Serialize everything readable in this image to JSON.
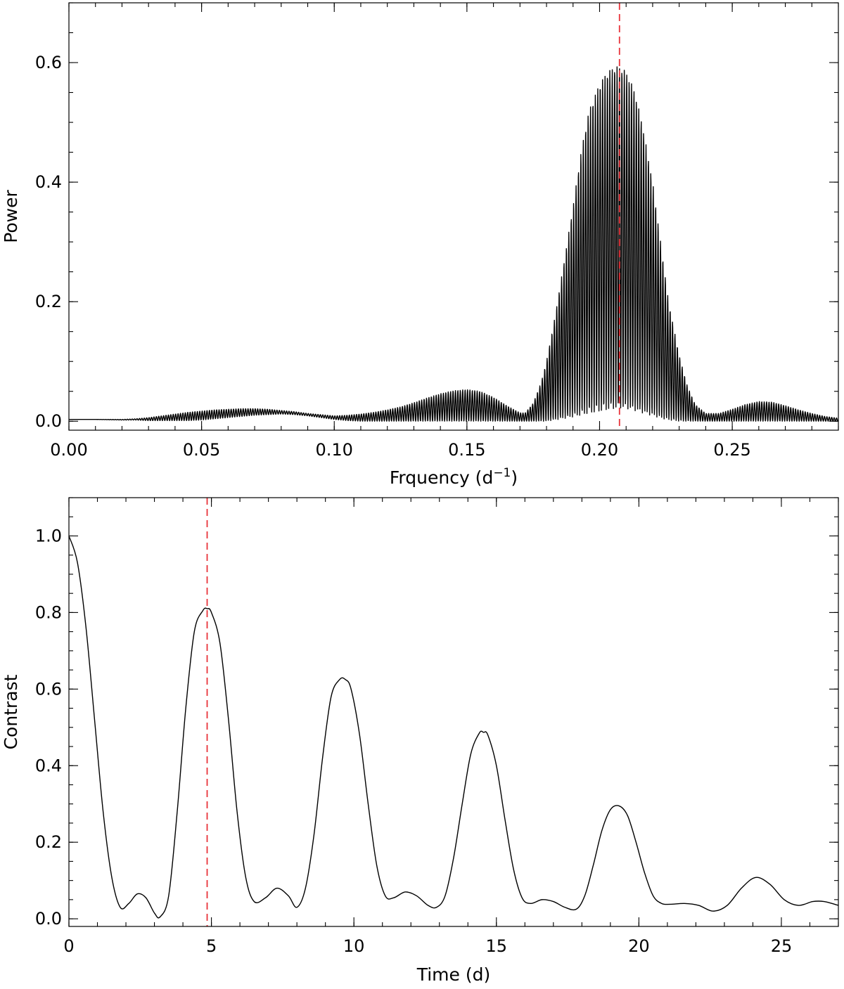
{
  "chart_data": [
    {
      "type": "line",
      "title": "",
      "xlabel": "Frquency (d",
      "xlabel_sup": "−1",
      "xlabel_suffix": ")",
      "ylabel": "Power",
      "xlim": [
        0.0,
        0.29
      ],
      "ylim": [
        -0.015,
        0.7
      ],
      "xticks": [
        0.0,
        0.05,
        0.1,
        0.15,
        0.2,
        0.25
      ],
      "xtick_labels": [
        "0.00",
        "0.05",
        "0.10",
        "0.15",
        "0.20",
        "0.25"
      ],
      "xminor_step": 0.01,
      "yticks": [
        0.0,
        0.2,
        0.4,
        0.6
      ],
      "ytick_labels": [
        "0.0",
        "0.2",
        "0.4",
        "0.6"
      ],
      "yminor_step": 0.05,
      "grid": false,
      "marker_x": 0.2075,
      "marker_color": "#e8333a",
      "series": [
        {
          "style": "fine-oscillation",
          "fringe_frequency": 1100,
          "x": [
            0.0,
            0.01,
            0.02,
            0.025,
            0.03,
            0.035,
            0.04,
            0.045,
            0.05,
            0.055,
            0.06,
            0.065,
            0.07,
            0.075,
            0.08,
            0.085,
            0.09,
            0.095,
            0.1,
            0.105,
            0.11,
            0.115,
            0.12,
            0.125,
            0.13,
            0.135,
            0.14,
            0.145,
            0.15,
            0.155,
            0.16,
            0.165,
            0.17,
            0.172,
            0.175,
            0.178,
            0.18,
            0.183,
            0.186,
            0.19,
            0.193,
            0.196,
            0.2,
            0.203,
            0.206,
            0.208,
            0.21,
            0.213,
            0.216,
            0.22,
            0.223,
            0.226,
            0.23,
            0.233,
            0.236,
            0.24,
            0.245,
            0.25,
            0.255,
            0.26,
            0.265,
            0.27,
            0.275,
            0.28,
            0.285,
            0.29
          ],
          "upper": [
            0.003,
            0.003,
            0.003,
            0.004,
            0.006,
            0.009,
            0.012,
            0.015,
            0.017,
            0.019,
            0.02,
            0.021,
            0.021,
            0.02,
            0.018,
            0.016,
            0.013,
            0.011,
            0.009,
            0.01,
            0.012,
            0.015,
            0.019,
            0.024,
            0.031,
            0.039,
            0.046,
            0.051,
            0.053,
            0.05,
            0.04,
            0.026,
            0.014,
            0.014,
            0.03,
            0.065,
            0.1,
            0.17,
            0.25,
            0.36,
            0.45,
            0.52,
            0.565,
            0.585,
            0.594,
            0.592,
            0.585,
            0.555,
            0.5,
            0.4,
            0.3,
            0.2,
            0.11,
            0.06,
            0.028,
            0.013,
            0.013,
            0.02,
            0.028,
            0.033,
            0.032,
            0.026,
            0.019,
            0.013,
            0.008,
            0.005
          ],
          "lower": [
            0.003,
            0.003,
            0.002,
            0.002,
            0.001,
            0.001,
            0.001,
            0.001,
            0.002,
            0.004,
            0.006,
            0.008,
            0.01,
            0.011,
            0.012,
            0.011,
            0.009,
            0.006,
            0.003,
            0.001,
            0.0,
            0.0,
            0.0,
            0.0,
            0.0,
            0.0,
            0.0,
            0.0,
            0.0,
            0.0,
            0.0,
            0.0,
            0.0,
            0.0,
            0.0,
            0.0,
            0.0,
            0.002,
            0.004,
            0.007,
            0.01,
            0.013,
            0.016,
            0.019,
            0.021,
            0.022,
            0.021,
            0.018,
            0.014,
            0.009,
            0.005,
            0.002,
            0.0,
            0.0,
            0.0,
            0.0,
            0.0,
            0.0,
            0.0,
            0.0,
            0.0,
            0.0,
            0.0,
            0.0,
            0.0,
            0.0
          ]
        }
      ]
    },
    {
      "type": "line",
      "title": "",
      "xlabel": "Time (d)",
      "ylabel": "Contrast",
      "xlim": [
        0,
        27
      ],
      "ylim": [
        -0.02,
        1.1
      ],
      "xticks": [
        0,
        5,
        10,
        15,
        20,
        25
      ],
      "xtick_labels": [
        "0",
        "5",
        "10",
        "15",
        "20",
        "25"
      ],
      "xminor_step": 1,
      "yticks": [
        0.0,
        0.2,
        0.4,
        0.6,
        0.8,
        1.0
      ],
      "ytick_labels": [
        "0.0",
        "0.2",
        "0.4",
        "0.6",
        "0.8",
        "1.0"
      ],
      "yminor_step": 0.05,
      "grid": false,
      "marker_x": 4.85,
      "marker_color": "#e8333a",
      "series": [
        {
          "style": "smooth",
          "x": [
            0.0,
            0.3,
            0.6,
            0.9,
            1.2,
            1.5,
            1.8,
            2.1,
            2.4,
            2.7,
            3.0,
            3.2,
            3.5,
            3.8,
            4.1,
            4.4,
            4.7,
            4.85,
            5.0,
            5.3,
            5.6,
            5.9,
            6.2,
            6.5,
            6.9,
            7.3,
            7.7,
            8.0,
            8.3,
            8.6,
            8.9,
            9.2,
            9.5,
            9.7,
            9.9,
            10.2,
            10.5,
            10.8,
            11.1,
            11.4,
            11.8,
            12.2,
            12.6,
            12.9,
            13.2,
            13.5,
            13.8,
            14.1,
            14.4,
            14.55,
            14.7,
            15.0,
            15.3,
            15.6,
            15.9,
            16.2,
            16.6,
            17.0,
            17.4,
            17.8,
            18.1,
            18.4,
            18.7,
            19.0,
            19.3,
            19.6,
            19.9,
            20.2,
            20.5,
            20.8,
            21.1,
            21.6,
            22.1,
            22.6,
            23.1,
            23.6,
            24.1,
            24.6,
            25.1,
            25.6,
            26.1,
            26.5,
            27.0
          ],
          "y": [
            1.0,
            0.93,
            0.76,
            0.52,
            0.28,
            0.11,
            0.03,
            0.04,
            0.065,
            0.055,
            0.015,
            0.005,
            0.06,
            0.28,
            0.55,
            0.75,
            0.805,
            0.81,
            0.8,
            0.72,
            0.52,
            0.28,
            0.11,
            0.045,
            0.055,
            0.08,
            0.06,
            0.03,
            0.08,
            0.22,
            0.42,
            0.58,
            0.625,
            0.625,
            0.6,
            0.48,
            0.3,
            0.14,
            0.06,
            0.055,
            0.07,
            0.06,
            0.035,
            0.03,
            0.06,
            0.16,
            0.3,
            0.43,
            0.485,
            0.487,
            0.48,
            0.4,
            0.26,
            0.13,
            0.055,
            0.04,
            0.05,
            0.045,
            0.03,
            0.025,
            0.06,
            0.14,
            0.23,
            0.285,
            0.295,
            0.27,
            0.2,
            0.12,
            0.06,
            0.04,
            0.038,
            0.04,
            0.035,
            0.02,
            0.035,
            0.08,
            0.108,
            0.09,
            0.05,
            0.035,
            0.045,
            0.045,
            0.035
          ]
        }
      ]
    }
  ]
}
